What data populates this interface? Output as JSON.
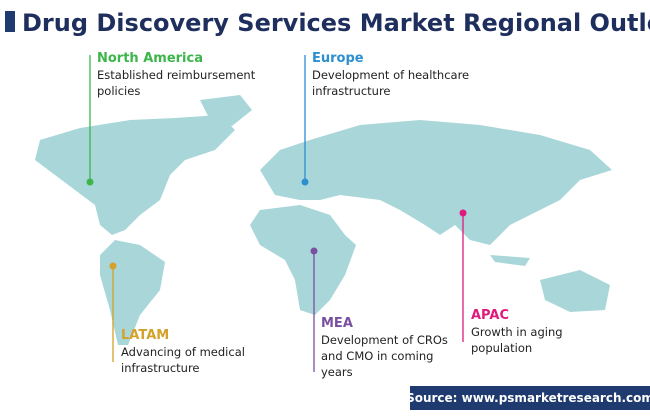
{
  "title": "Drug Discovery Services Market Regional Outlook",
  "regions": [
    {
      "name": "North America",
      "color": "#3cb54a",
      "description": [
        "Established reimbursement",
        "policies"
      ]
    },
    {
      "name": "Europe",
      "color": "#2b8fd0",
      "description": [
        "Development of healthcare",
        "infrastructure"
      ]
    },
    {
      "name": "LATAM",
      "color": "#d4a12a",
      "description": [
        "Advancing of medical",
        "infrastructure"
      ]
    },
    {
      "name": "MEA",
      "color": "#7b4fa0",
      "description": [
        "Development of CROs",
        "and CMO in coming",
        "years"
      ]
    },
    {
      "name": "APAC",
      "color": "#e0197d",
      "description": [
        "Growth in aging",
        "population"
      ]
    }
  ],
  "source": "Source: www.psmarketresearch.com"
}
